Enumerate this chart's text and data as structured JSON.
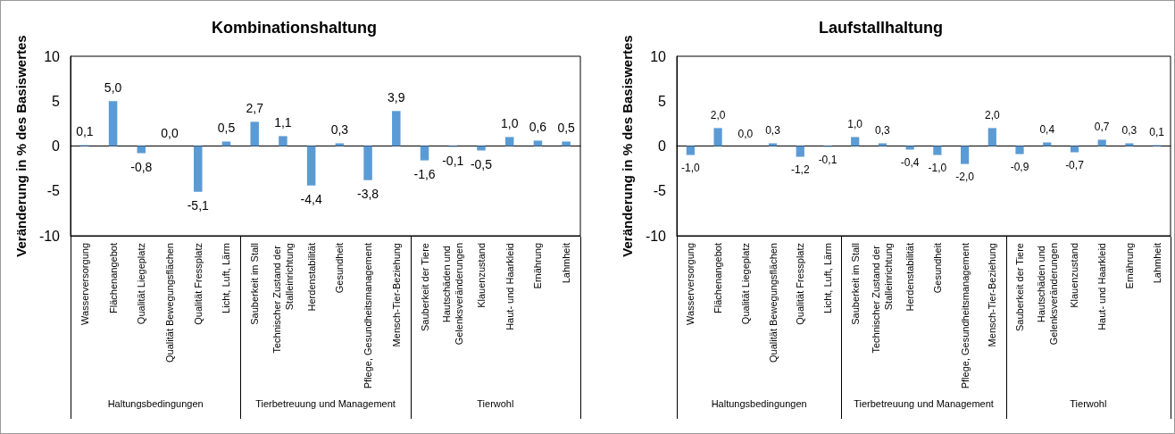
{
  "chart_data": [
    {
      "type": "bar",
      "title": "Kombinationshaltung",
      "ylabel": "Veränderung in % des Basiswertes",
      "categories": [
        "Wasserversorgung",
        "Flächenangebot",
        "Qualität Liegeplatz",
        "Qualität Bewegungsflächen",
        "Qualität Fressplatz",
        "Licht, Luft, Lärm",
        "Sauberkeit im Stall",
        "Technischer Zustand der Stalleinrichtung",
        "Herdenstabilität",
        "Gesundheit",
        "Pflege, Gesundheitsmanagement",
        "Mensch-Tier-Beziehung",
        "Sauberkeit der Tiere",
        "Hautschäden und Gelenksveränderungen",
        "Klauenzustand",
        "Haut- und Haarkleid",
        "Ernährung",
        "Lahmheit"
      ],
      "values": [
        0.1,
        5.0,
        -0.8,
        0.0,
        -5.1,
        0.5,
        2.7,
        1.1,
        -4.4,
        0.3,
        -3.8,
        3.9,
        -1.6,
        -0.1,
        -0.5,
        1.0,
        0.6,
        0.5
      ],
      "value_labels": [
        "0,1",
        "5,0",
        "-0,8",
        "0,0",
        "-5,1",
        "0,5",
        "2,7",
        "1,1",
        "-4,4",
        "0,3",
        "-3,8",
        "3,9",
        "-1,6",
        "-0,1",
        "-0,5",
        "1,0",
        "0,6",
        "0,5"
      ],
      "color": "#5b9bd5",
      "ylim": [
        -10,
        10
      ],
      "yticks": [
        -10,
        -5,
        0,
        5,
        10
      ],
      "annotations": [
        "Haltungsbedingungen",
        "Tierbetreuung und Management",
        "Tierwohl"
      ]
    },
    {
      "type": "bar",
      "title": "Laufstallhaltung",
      "ylabel": "Veränderung in % des Basiswertes",
      "categories": [
        "Wasserversorgung",
        "Flächenangebot",
        "Qualität Liegeplatz",
        "Qualität Bewegungsflächen",
        "Qualität Fressplatz",
        "Licht, Luft, Lärm",
        "Sauberkeit im Stall",
        "Technischer Zustand der Stalleinrichtung",
        "Herdenstabilität",
        "Gesundheit",
        "Pflege, Gesundheitsmanagement",
        "Mensch-Tier-Beziehung",
        "Sauberkeit der Tiere",
        "Hautschäden und Gelenksveränderungen",
        "Klauenzustand",
        "Haut- und Haarkleid",
        "Ernährung",
        "Lahmheit"
      ],
      "values": [
        -1.0,
        2.0,
        0.0,
        0.3,
        -1.2,
        -0.1,
        1.0,
        0.3,
        -0.4,
        -1.0,
        -2.0,
        2.0,
        -0.9,
        0.4,
        -0.7,
        0.7,
        0.3,
        0.1
      ],
      "value_labels": [
        "-1,0",
        "2,0",
        "0,0",
        "0,3",
        "-1,2",
        "-0,1",
        "1,0",
        "0,3",
        "-0,4",
        "-1,0",
        "-2,0",
        "2,0",
        "-0,9",
        "0,4",
        "-0,7",
        "0,7",
        "0,3",
        "0,1"
      ],
      "color": "#5b9bd5",
      "ylim": [
        -10,
        10
      ],
      "yticks": [
        -10,
        -5,
        0,
        5,
        10
      ],
      "annotations": [
        "Haltungsbedingungen",
        "Tierbetreuung und Management",
        "Tierwohl"
      ]
    }
  ]
}
